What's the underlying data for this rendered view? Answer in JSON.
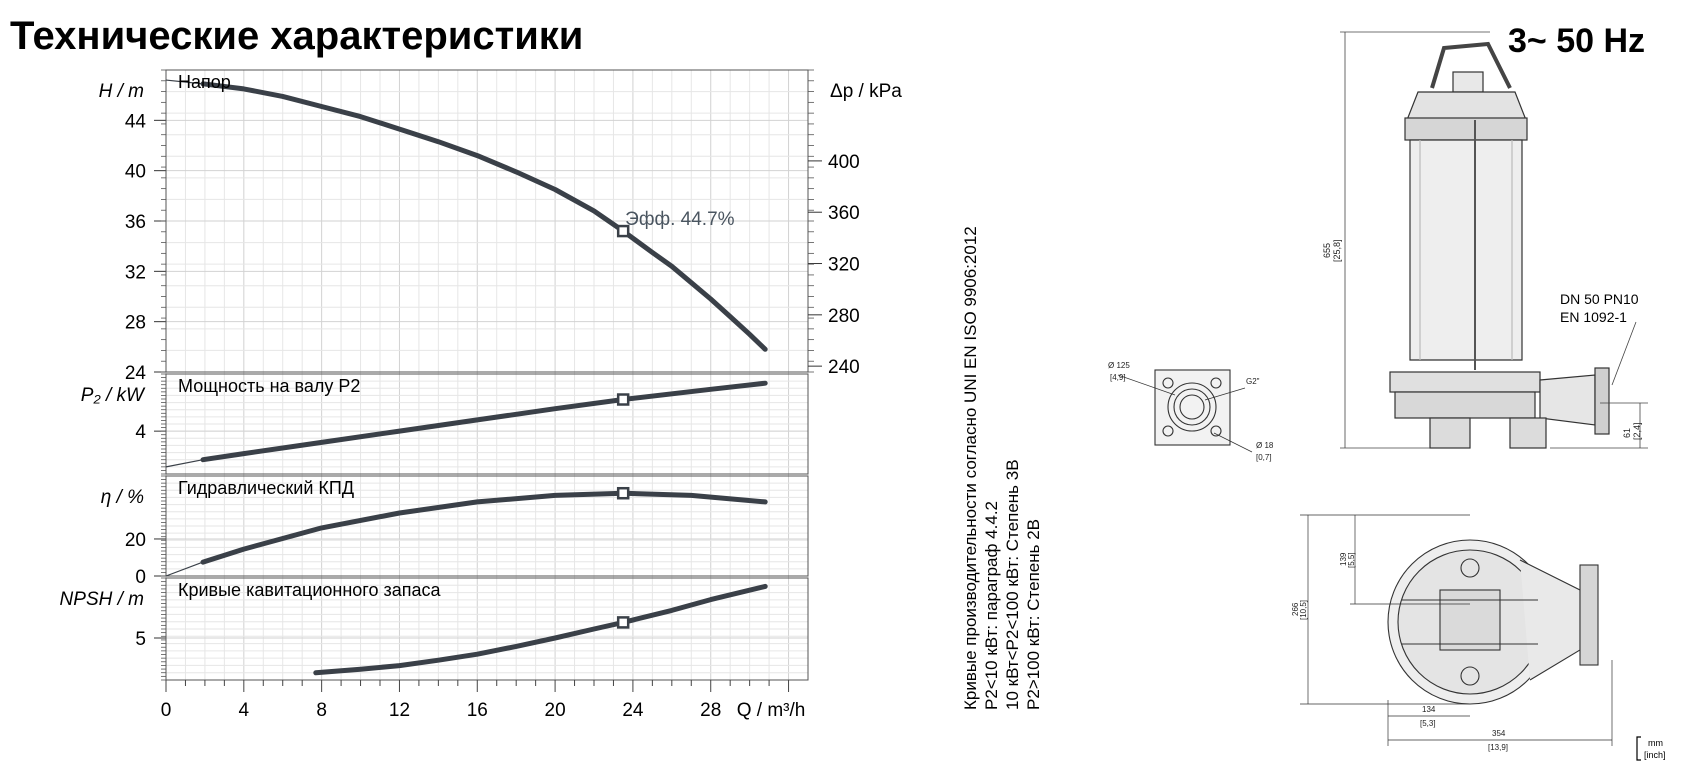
{
  "page": {
    "title": "Технические характеристики",
    "frequency": "3~ 50 Hz"
  },
  "colors": {
    "curve": "#3a4048",
    "grid": "#d2d2d2",
    "grid_minor": "#e6e6e6",
    "axis": "#555555"
  },
  "side_notes": {
    "line1": "Кривые производительности согласно UNI EN ISO 9906:2012",
    "line2": "P2<10 кВт: параграф 4.4.2",
    "line3": "10 кВт<P2<100 кВт: Степень 3B",
    "line4": "P2>100 кВт: Степень 2B"
  },
  "drawing": {
    "flange_note1": "DN 50 PN10",
    "flange_note2": "EN 1092-1",
    "dim_655": "655",
    "dim_655_in": "[25,8]",
    "dim_61": "61",
    "dim_61_in": "[2,4]",
    "dim_125": "Ø 125",
    "dim_125_in": "[4,9]",
    "dim_g2": "G2\"",
    "dim_18": "Ø 18",
    "dim_18_in": "[0,7]",
    "dim_139": "139",
    "dim_139_in": "[5,5]",
    "dim_266": "266",
    "dim_266_in": "[10,5]",
    "dim_134": "134",
    "dim_134_in": "[5,3]",
    "dim_354": "354",
    "dim_354_in": "[13,9]",
    "units_mm": "mm",
    "units_inch": "[inch]"
  },
  "chart_data": [
    {
      "type": "line",
      "section_label": "Напор",
      "ylabel": "H / m",
      "ylabel_right": "Δp / kPa",
      "ylim": [
        24,
        48
      ],
      "yticks": [
        24,
        28,
        32,
        36,
        40,
        44
      ],
      "yticks_right": [
        240,
        280,
        320,
        360,
        400
      ],
      "x": [
        1.9,
        4,
        6,
        8,
        10,
        12,
        14,
        16,
        18,
        20,
        22,
        23.5,
        25,
        26,
        27,
        28,
        29,
        30,
        30.8
      ],
      "values": [
        46.9,
        46.5,
        45.9,
        45.1,
        44.3,
        43.3,
        42.3,
        41.2,
        39.9,
        38.5,
        36.8,
        35.2,
        33.5,
        32.4,
        31.1,
        29.8,
        28.4,
        27.0,
        25.8
      ],
      "marker": {
        "x": 23.5,
        "y": 35.2,
        "label": "Эфф.  44.7%"
      }
    },
    {
      "type": "line",
      "section_label": "Мощность на валу P2",
      "ylabel": "P₂ / kW",
      "ylim": [
        1.9,
        6.8
      ],
      "yticks": [
        4
      ],
      "x": [
        1.9,
        4,
        8,
        12,
        16,
        20,
        23.5,
        28,
        30.8
      ],
      "values": [
        2.6,
        2.9,
        3.45,
        4.0,
        4.55,
        5.1,
        5.55,
        6.05,
        6.35
      ],
      "marker": {
        "x": 23.5,
        "y": 5.55
      }
    },
    {
      "type": "line",
      "section_label": "Гидравлический КПД",
      "ylabel": "η / %",
      "ylim": [
        0,
        54
      ],
      "yticks": [
        0,
        20
      ],
      "x": [
        1.9,
        4,
        8,
        12,
        16,
        20,
        23.5,
        27,
        30.8
      ],
      "values": [
        7.5,
        14.5,
        26,
        34,
        40,
        43.5,
        44.7,
        43.5,
        40
      ],
      "marker": {
        "x": 23.5,
        "y": 44.7
      }
    },
    {
      "type": "line",
      "section_label": "Кривые кавитационного запаса",
      "ylabel": "NPSH / m",
      "ylim": [
        1.5,
        10
      ],
      "yticks": [
        5
      ],
      "x": [
        7.7,
        10,
        12,
        14,
        16,
        18,
        20,
        22,
        23.5,
        26,
        28,
        30.8
      ],
      "values": [
        2.1,
        2.4,
        2.7,
        3.15,
        3.65,
        4.3,
        5.0,
        5.75,
        6.3,
        7.3,
        8.2,
        9.3
      ],
      "marker": {
        "x": 23.5,
        "y": 6.3
      }
    }
  ],
  "x_axis": {
    "label": "Q / m³/h",
    "xlim": [
      0,
      33
    ],
    "ticks": [
      0,
      4,
      8,
      12,
      16,
      20,
      24,
      28
    ]
  }
}
